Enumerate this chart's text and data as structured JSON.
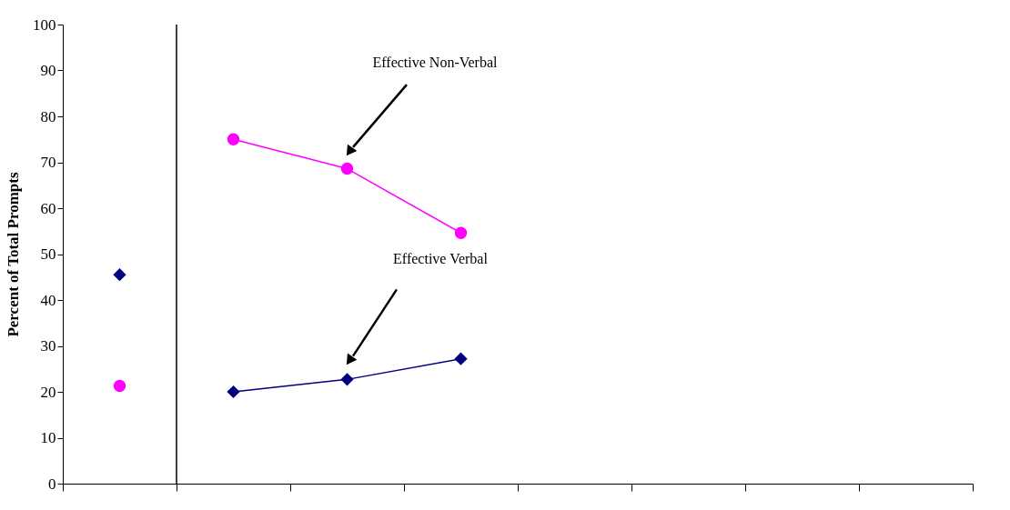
{
  "chart_data": {
    "type": "line",
    "ylabel": "Percent of Total Prompts",
    "categories": [
      null,
      null,
      null,
      null,
      null,
      null,
      null,
      null
    ],
    "ylim": [
      0,
      100
    ],
    "yticks": [
      0,
      10,
      20,
      30,
      40,
      50,
      60,
      70,
      80,
      90,
      100
    ],
    "tick_labels": "y",
    "grid": false,
    "series": [
      {
        "color": "#ff00ff",
        "marker": "circle",
        "values": [
          null,
          75,
          68.6,
          54.6,
          null,
          null,
          null,
          null
        ]
      },
      {
        "color": "#000080",
        "marker": "diamond",
        "values": [
          null,
          20,
          22.7,
          27.2,
          null,
          null,
          null,
          null
        ]
      },
      {
        "type": "scatter",
        "color": "#ff00ff",
        "marker": "circle",
        "values": [
          21.3,
          null,
          null,
          null,
          null,
          null,
          null,
          null
        ]
      },
      {
        "type": "scatter",
        "color": "#000080",
        "marker": "diamond",
        "values": [
          45.5,
          null,
          null,
          null,
          null,
          null,
          null,
          null
        ]
      }
    ],
    "annotations": [
      "Effective Non-Verbal",
      "Effective Verbal"
    ]
  }
}
